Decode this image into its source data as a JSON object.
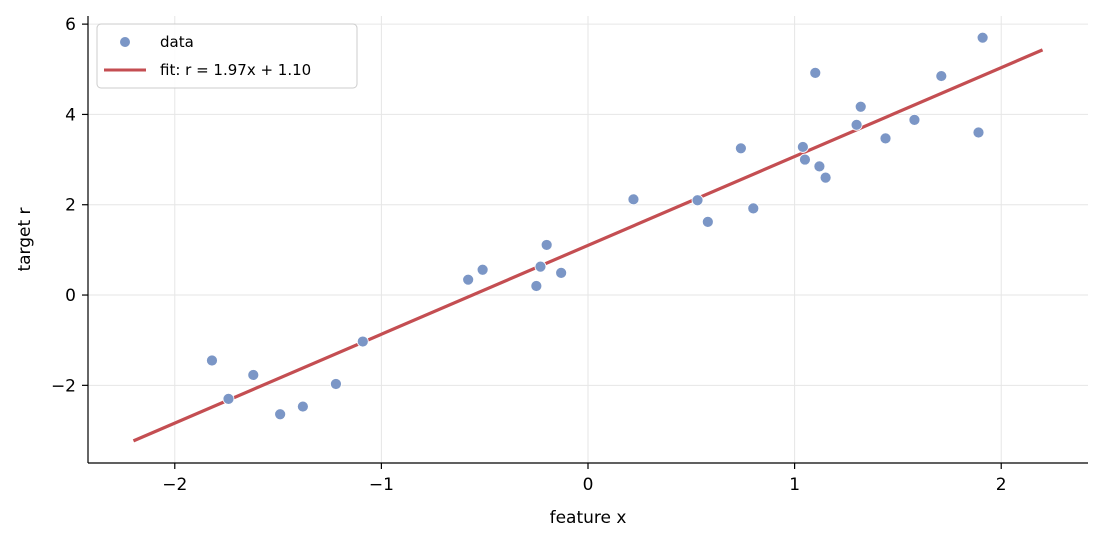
{
  "chart_data": {
    "type": "scatter",
    "title": "",
    "xlabel": "feature  x",
    "ylabel": "target  r",
    "xlim": [
      -2.42,
      2.42
    ],
    "ylim": [
      -3.72,
      6.18
    ],
    "xticks": [
      -2,
      -1,
      0,
      1,
      2
    ],
    "yticks": [
      -2,
      0,
      2,
      4,
      6
    ],
    "xtick_labels": [
      "−2",
      "−1",
      "0",
      "1",
      "2"
    ],
    "ytick_labels": [
      "−2",
      "0",
      "2",
      "4",
      "6"
    ],
    "grid": true,
    "legend_position": "top-left",
    "series": [
      {
        "name": "data",
        "kind": "scatter",
        "color": "#7b96c6",
        "points": [
          {
            "x": -1.82,
            "y": -1.45
          },
          {
            "x": -1.74,
            "y": -2.3
          },
          {
            "x": -1.62,
            "y": -1.77
          },
          {
            "x": -1.49,
            "y": -2.64
          },
          {
            "x": -1.38,
            "y": -2.47
          },
          {
            "x": -1.22,
            "y": -1.97
          },
          {
            "x": -1.09,
            "y": -1.03
          },
          {
            "x": -0.58,
            "y": 0.34
          },
          {
            "x": -0.51,
            "y": 0.56
          },
          {
            "x": -0.25,
            "y": 0.2
          },
          {
            "x": -0.23,
            "y": 0.63
          },
          {
            "x": -0.2,
            "y": 1.11
          },
          {
            "x": -0.13,
            "y": 0.49
          },
          {
            "x": 0.22,
            "y": 2.12
          },
          {
            "x": 0.53,
            "y": 2.1
          },
          {
            "x": 0.58,
            "y": 1.62
          },
          {
            "x": 0.74,
            "y": 3.25
          },
          {
            "x": 0.8,
            "y": 1.92
          },
          {
            "x": 1.04,
            "y": 3.28
          },
          {
            "x": 1.05,
            "y": 3.0
          },
          {
            "x": 1.1,
            "y": 4.92
          },
          {
            "x": 1.12,
            "y": 2.85
          },
          {
            "x": 1.15,
            "y": 2.6
          },
          {
            "x": 1.3,
            "y": 3.77
          },
          {
            "x": 1.32,
            "y": 4.17
          },
          {
            "x": 1.44,
            "y": 3.47
          },
          {
            "x": 1.58,
            "y": 3.88
          },
          {
            "x": 1.71,
            "y": 4.85
          },
          {
            "x": 1.89,
            "y": 3.6
          },
          {
            "x": 1.91,
            "y": 5.7
          }
        ]
      },
      {
        "name": "fit: r = 1.97x + 1.10",
        "kind": "line",
        "color": "#c44e52",
        "x": [
          -2.2,
          2.2
        ],
        "y": [
          -3.23,
          5.43
        ]
      }
    ]
  }
}
